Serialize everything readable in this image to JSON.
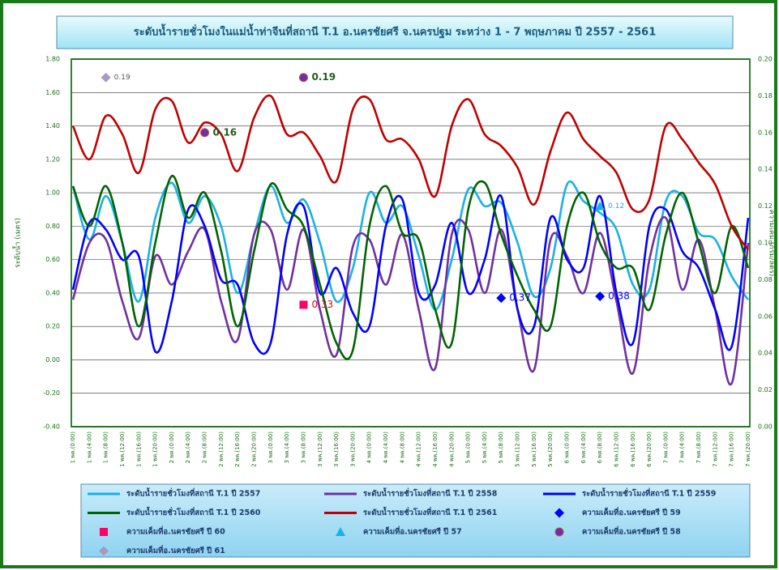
{
  "chart_data": {
    "type": "line",
    "title": "ระดับน้ำรายชั่วโมงในแม่น้ำท่าจีนที่สถานี T.1 อ.นครชัยศรี จ.นครปฐม ระหว่าง  1 - 7 พฤษภาคม ปี 2557 - 2561",
    "y_label": "ระดับน้ำ (เมตร)",
    "y2_label": "ความเค็ม (กรัม/ลิตร)",
    "categories": [
      "1 พค.(0:00)",
      "1 พค.(4:00)",
      "1 พค.(8:00)",
      "1 พค.(12:00)",
      "1 พค.(16:00)",
      "1 พค.(20:00)",
      "2 พค.(0:00)",
      "2 พค.(4:00)",
      "2 พค.(8:00)",
      "2 พค.(12:00)",
      "2 พค.(16:00)",
      "2 พค.(20:00)",
      "3 พค.(0:00)",
      "3 พค.(4:00)",
      "3 พค.(8:00)",
      "3 พค.(12:00)",
      "3 พค.(16:00)",
      "3 พค.(20:00)",
      "4 พค.(0:00)",
      "4 พค.(4:00)",
      "4 พค.(8:00)",
      "4 พค.(12:00)",
      "4 พค.(16:00)",
      "4 พค.(20:00)",
      "5 พค.(0:00)",
      "5 พค.(4:00)",
      "5 พค.(8:00)",
      "5 พค.(12:00)",
      "5 พค.(16:00)",
      "5 พค.(20:00)",
      "6 พค.(0:00)",
      "6 พค.(4:00)",
      "6 พค.(8:00)",
      "6 พค.(12:00)",
      "6 พค.(16:00)",
      "6 พค.(20:00)",
      "7 พค.(0:00)",
      "7 พค.(4:00)",
      "7 พค.(8:00)",
      "7 พค.(12:00)",
      "7 พค.(16:00)",
      "7 พค.(20:00)"
    ],
    "ylim": [
      -0.4,
      1.8
    ],
    "yticks": [
      {
        "value": -0.4,
        "label": "-0.40"
      },
      {
        "value": -0.2,
        "label": "-0.20"
      },
      {
        "value": 0,
        "label": "0.00"
      },
      {
        "value": 0.2,
        "label": "0.20"
      },
      {
        "value": 0.4,
        "label": "0.40"
      },
      {
        "value": 0.6,
        "label": "0.60"
      },
      {
        "value": 0.8,
        "label": "0.80"
      },
      {
        "value": 1.0,
        "label": "1.00"
      },
      {
        "value": 1.2,
        "label": "1.20"
      },
      {
        "value": 1.4,
        "label": "1.40"
      },
      {
        "value": 1.6,
        "label": "1.60"
      },
      {
        "value": 1.8,
        "label": "1.80"
      }
    ],
    "y2lim": [
      0,
      0.2
    ],
    "y2ticks": [
      {
        "value": 0,
        "label": "0.00"
      },
      {
        "value": 0.02,
        "label": "0.02"
      },
      {
        "value": 0.04,
        "label": "0.04"
      },
      {
        "value": 0.06,
        "label": "0.06"
      },
      {
        "value": 0.08,
        "label": "0.08"
      },
      {
        "value": 0.1,
        "label": "0.10"
      },
      {
        "value": 0.12,
        "label": "0.12"
      },
      {
        "value": 0.14,
        "label": "0.14"
      },
      {
        "value": 0.16,
        "label": "0.16"
      },
      {
        "value": 0.18,
        "label": "0.18"
      },
      {
        "value": 0.2,
        "label": "0.20"
      }
    ],
    "grid": true,
    "series": [
      {
        "name": "ระดับน้ำรายชั่วโมงที่สถานี T.1 ปี 2557",
        "color": "#1ab0e8",
        "values": [
          1.04,
          0.72,
          0.98,
          0.7,
          0.35,
          0.85,
          1.06,
          0.82,
          0.98,
          0.8,
          0.4,
          0.75,
          1.04,
          0.82,
          0.96,
          0.7,
          0.35,
          0.55,
          1.0,
          0.82,
          0.92,
          0.62,
          0.3,
          0.6,
          1.02,
          0.92,
          0.94,
          0.7,
          0.38,
          0.55,
          1.05,
          0.95,
          0.88,
          0.78,
          0.45,
          0.42,
          0.95,
          0.98,
          0.76,
          0.72,
          0.5,
          0.36
        ]
      },
      {
        "name": "ระดับน้ำรายชั่วโมงที่สถานี T.1 ปี 2558",
        "color": "#7030a0",
        "values": [
          0.36,
          0.7,
          0.72,
          0.35,
          0.13,
          0.62,
          0.45,
          0.65,
          0.78,
          0.35,
          0.12,
          0.75,
          0.78,
          0.42,
          0.78,
          0.3,
          0.03,
          0.68,
          0.72,
          0.45,
          0.75,
          0.3,
          -0.05,
          0.75,
          0.78,
          0.4,
          0.78,
          0.3,
          -0.06,
          0.72,
          0.62,
          0.4,
          0.76,
          0.35,
          -0.08,
          0.6,
          0.85,
          0.42,
          0.72,
          0.3,
          -0.14,
          0.7
        ]
      },
      {
        "name": "ระดับน้ำรายชั่วโมงที่สถานี T.1 ปี 2559",
        "color": "#0000ff",
        "values": [
          0.42,
          0.82,
          0.78,
          0.6,
          0.62,
          0.05,
          0.35,
          0.9,
          0.8,
          0.48,
          0.45,
          0.1,
          0.1,
          0.75,
          0.92,
          0.4,
          0.55,
          0.28,
          0.2,
          0.8,
          0.96,
          0.4,
          0.45,
          0.82,
          0.4,
          0.6,
          0.98,
          0.3,
          0.2,
          0.85,
          0.6,
          0.55,
          0.98,
          0.4,
          0.1,
          0.8,
          0.9,
          0.65,
          0.55,
          0.3,
          0.08,
          0.85
        ]
      },
      {
        "name": "ระดับน้ำรายชั่วโมงที่สถานี T.1 ปี 2560",
        "color": "#006400",
        "values": [
          1.04,
          0.8,
          1.04,
          0.7,
          0.2,
          0.7,
          1.1,
          0.85,
          1.0,
          0.65,
          0.2,
          0.65,
          1.05,
          0.9,
          0.8,
          0.45,
          0.1,
          0.06,
          0.8,
          1.04,
          0.76,
          0.72,
          0.3,
          0.1,
          0.9,
          1.06,
          0.75,
          0.5,
          0.3,
          0.2,
          0.8,
          1.0,
          0.7,
          0.55,
          0.55,
          0.3,
          0.75,
          1.0,
          0.7,
          0.4,
          0.8,
          0.55
        ]
      },
      {
        "name": "ระดับน้ำรายชั่วโมงที่สถานี T.1 ปี 2561",
        "color": "#c00000",
        "values": [
          1.4,
          1.2,
          1.46,
          1.35,
          1.12,
          1.5,
          1.55,
          1.3,
          1.42,
          1.35,
          1.13,
          1.45,
          1.58,
          1.35,
          1.36,
          1.22,
          1.07,
          1.5,
          1.56,
          1.32,
          1.32,
          1.2,
          0.98,
          1.4,
          1.56,
          1.35,
          1.28,
          1.15,
          0.93,
          1.25,
          1.48,
          1.32,
          1.22,
          1.12,
          0.9,
          0.96,
          1.4,
          1.32,
          1.18,
          1.05,
          0.8,
          0.66
        ]
      },
      {
        "name": "ความเค็มที่อ.นครชัยศรี ปี 59",
        "color": "#0000ff",
        "marker": "diamond",
        "label_color": "#0000ff",
        "values": [
          null,
          null,
          null,
          null,
          null,
          null,
          null,
          null,
          null,
          null,
          null,
          null,
          null,
          null,
          null,
          null,
          null,
          null,
          null,
          null,
          null,
          null,
          null,
          null,
          null,
          null,
          0.37,
          null,
          null,
          null,
          null,
          null,
          0.38,
          null,
          null,
          null,
          null,
          null,
          null,
          null,
          null,
          null
        ]
      },
      {
        "name": "ความเค็มที่อ.นครชัยศรี ปี 60",
        "color": "#ff0066",
        "marker": "square",
        "label_color": "#e00030",
        "values": [
          null,
          null,
          null,
          null,
          null,
          null,
          null,
          null,
          null,
          null,
          null,
          null,
          null,
          null,
          0.33,
          null,
          null,
          null,
          null,
          null,
          null,
          null,
          null,
          null,
          null,
          null,
          null,
          null,
          null,
          null,
          null,
          null,
          null,
          null,
          null,
          null,
          null,
          null,
          null,
          null,
          null,
          null
        ]
      },
      {
        "name": "ความเค็มที่อ.นครชัยศรี ปี 57",
        "color": "#1ab0e8",
        "marker": "triangle",
        "label_color": "#1ab0e8",
        "axis": "y2",
        "values": [
          null,
          null,
          null,
          null,
          null,
          null,
          null,
          null,
          null,
          null,
          null,
          null,
          null,
          null,
          null,
          null,
          null,
          null,
          null,
          null,
          null,
          null,
          null,
          null,
          null,
          null,
          null,
          null,
          null,
          null,
          null,
          null,
          0.12,
          null,
          null,
          null,
          null,
          null,
          null,
          null,
          null,
          null
        ]
      },
      {
        "name": "ความเค็มที่อ.นครชัยศรี ปี 58",
        "color": "#7030a0",
        "marker": "circle",
        "label_color": "#1e5e1e",
        "axis": "y2",
        "values": [
          null,
          null,
          null,
          null,
          null,
          null,
          null,
          null,
          0.16,
          null,
          null,
          null,
          null,
          null,
          0.19,
          null,
          null,
          null,
          null,
          null,
          null,
          null,
          null,
          null,
          null,
          null,
          null,
          null,
          null,
          null,
          null,
          null,
          null,
          null,
          null,
          null,
          null,
          null,
          null,
          null,
          null,
          null
        ]
      },
      {
        "name": "ความเค็มที่อ.นครชัยศรี ปี 61",
        "color": "#a89ac0",
        "marker": "diamond",
        "label_color": "#555555",
        "axis": "y2",
        "values": [
          null,
          null,
          0.19,
          null,
          null,
          null,
          null,
          null,
          null,
          null,
          null,
          null,
          null,
          null,
          null,
          null,
          null,
          null,
          null,
          null,
          null,
          null,
          null,
          null,
          null,
          null,
          null,
          null,
          null,
          null,
          null,
          null,
          null,
          null,
          null,
          null,
          null,
          null,
          null,
          null,
          null,
          null
        ]
      }
    ]
  }
}
